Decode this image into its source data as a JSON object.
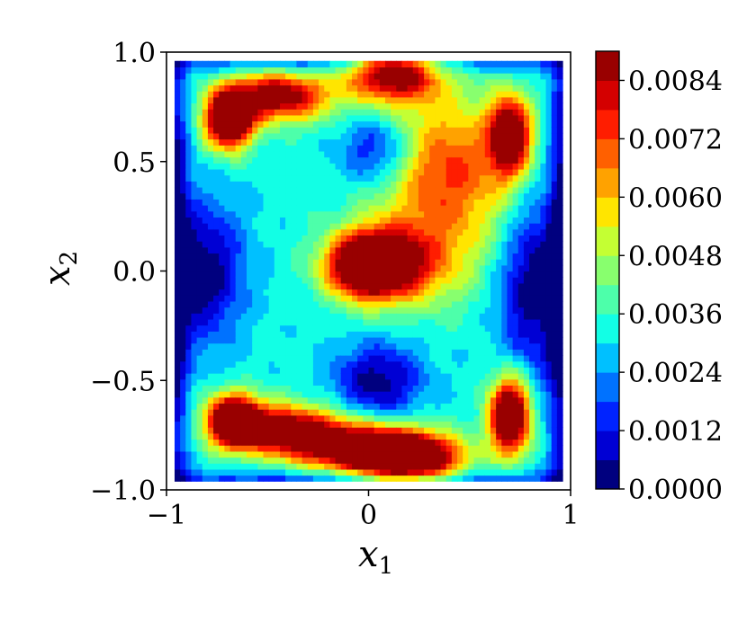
{
  "chart_data": {
    "type": "heatmap",
    "subtype": "filled-contour",
    "title": "",
    "xlabel": "x",
    "xlabel_sub": "1",
    "ylabel": "x",
    "ylabel_sub": "2",
    "xlim": [
      -1.0,
      1.0
    ],
    "ylim": [
      -1.0,
      1.0
    ],
    "x_ticks": [
      -1,
      0,
      1
    ],
    "x_tick_labels": [
      "−1",
      "0",
      "1"
    ],
    "y_ticks": [
      1.0,
      0.5,
      0.0,
      -0.5,
      -1.0
    ],
    "y_tick_labels": [
      "1.0",
      "0.5",
      "0.0",
      "−0.5",
      "−1.0"
    ],
    "data_extent": [
      -0.96,
      0.96,
      -0.96,
      0.96
    ],
    "colormap": "jet",
    "colorbar": {
      "range": [
        0.0,
        0.009
      ],
      "levels": [
        0.0,
        0.0006,
        0.0012,
        0.0018,
        0.0024,
        0.003,
        0.0036,
        0.0042,
        0.0048,
        0.0054,
        0.006,
        0.0066,
        0.0072,
        0.0078,
        0.0084,
        0.009
      ],
      "colors": [
        "#00007f",
        "#0000d4",
        "#0023ff",
        "#0072ff",
        "#00c0ff",
        "#12ffe5",
        "#4dffaa",
        "#88ff6e",
        "#c4ff33",
        "#ffe500",
        "#ffa200",
        "#ff6000",
        "#ff1d00",
        "#d40000",
        "#990000"
      ],
      "tick_values": [
        0.0,
        0.0012,
        0.0024,
        0.0036,
        0.0048,
        0.006,
        0.0072,
        0.0084
      ],
      "tick_labels": [
        "0.0000",
        "0.0012",
        "0.0024",
        "0.0036",
        "0.0048",
        "0.0060",
        "0.0072",
        "0.0084"
      ]
    },
    "features": [
      {
        "x": 0.0,
        "y": 0.03,
        "sx": 0.14,
        "sy": 0.1,
        "amp": 0.0085
      },
      {
        "x": 0.2,
        "y": 0.03,
        "sx": 0.2,
        "sy": 0.14,
        "amp": 0.003
      },
      {
        "x": -0.69,
        "y": 0.69,
        "sx": 0.08,
        "sy": 0.09,
        "amp": 0.0085
      },
      {
        "x": -0.45,
        "y": 0.8,
        "sx": 0.18,
        "sy": 0.08,
        "amp": 0.0062
      },
      {
        "x": 0.12,
        "y": 0.92,
        "sx": 0.16,
        "sy": 0.1,
        "amp": 0.0066
      },
      {
        "x": 0.7,
        "y": 0.62,
        "sx": 0.07,
        "sy": 0.12,
        "amp": 0.007
      },
      {
        "x": 0.38,
        "y": 0.45,
        "sx": 0.25,
        "sy": 0.25,
        "amp": 0.0042
      },
      {
        "x": -0.67,
        "y": -0.68,
        "sx": 0.09,
        "sy": 0.08,
        "amp": 0.0085
      },
      {
        "x": -0.42,
        "y": -0.72,
        "sx": 0.18,
        "sy": 0.08,
        "amp": 0.0058
      },
      {
        "x": 0.2,
        "y": -0.85,
        "sx": 0.18,
        "sy": 0.08,
        "amp": 0.0086
      },
      {
        "x": 0.7,
        "y": -0.66,
        "sx": 0.07,
        "sy": 0.12,
        "amp": 0.0085
      },
      {
        "x": -0.1,
        "y": -0.8,
        "sx": 0.2,
        "sy": 0.08,
        "amp": 0.0058
      }
    ],
    "background_level": 0.0032,
    "minima": [
      {
        "x": 0.05,
        "y": 0.55,
        "sx": 0.13,
        "sy": 0.12,
        "amp": 0.003
      },
      {
        "x": 0.05,
        "y": -0.5,
        "sx": 0.15,
        "sy": 0.12,
        "amp": 0.003
      },
      {
        "x": -0.82,
        "y": 0.0,
        "sx": 0.14,
        "sy": 0.22,
        "amp": 0.0032
      },
      {
        "x": 0.82,
        "y": -0.05,
        "sx": 0.12,
        "sy": 0.3,
        "amp": 0.0032
      },
      {
        "x": -0.96,
        "y": 0.0,
        "sx": 0.05,
        "sy": 1.0,
        "amp": 0.003
      },
      {
        "x": 0.96,
        "y": 0.0,
        "sx": 0.05,
        "sy": 1.0,
        "amp": 0.003
      },
      {
        "x": 0.0,
        "y": 0.96,
        "sx": 1.0,
        "sy": 0.04,
        "amp": 0.002
      },
      {
        "x": 0.0,
        "y": -0.96,
        "sx": 1.0,
        "sy": 0.04,
        "amp": 0.002
      }
    ]
  }
}
